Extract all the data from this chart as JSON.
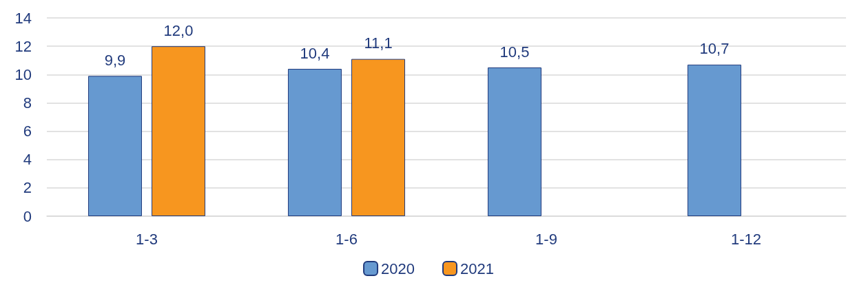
{
  "chart_data": {
    "type": "bar",
    "categories": [
      "1-3",
      "1-6",
      "1-9",
      "1-12"
    ],
    "series": [
      {
        "name": "2020",
        "color": "#6699d0",
        "values": [
          9.9,
          10.4,
          10.5,
          10.7
        ],
        "value_labels": [
          "9,9",
          "10,4",
          "10,5",
          "10,7"
        ]
      },
      {
        "name": "2021",
        "color": "#f7961f",
        "values": [
          12.0,
          11.1,
          null,
          null
        ],
        "value_labels": [
          "12,0",
          "11,1",
          null,
          null
        ]
      }
    ],
    "ylim": [
      0,
      14
    ],
    "yticks": [
      0,
      2,
      4,
      6,
      8,
      10,
      12,
      14
    ],
    "grid": "y",
    "legend": "bottom"
  }
}
